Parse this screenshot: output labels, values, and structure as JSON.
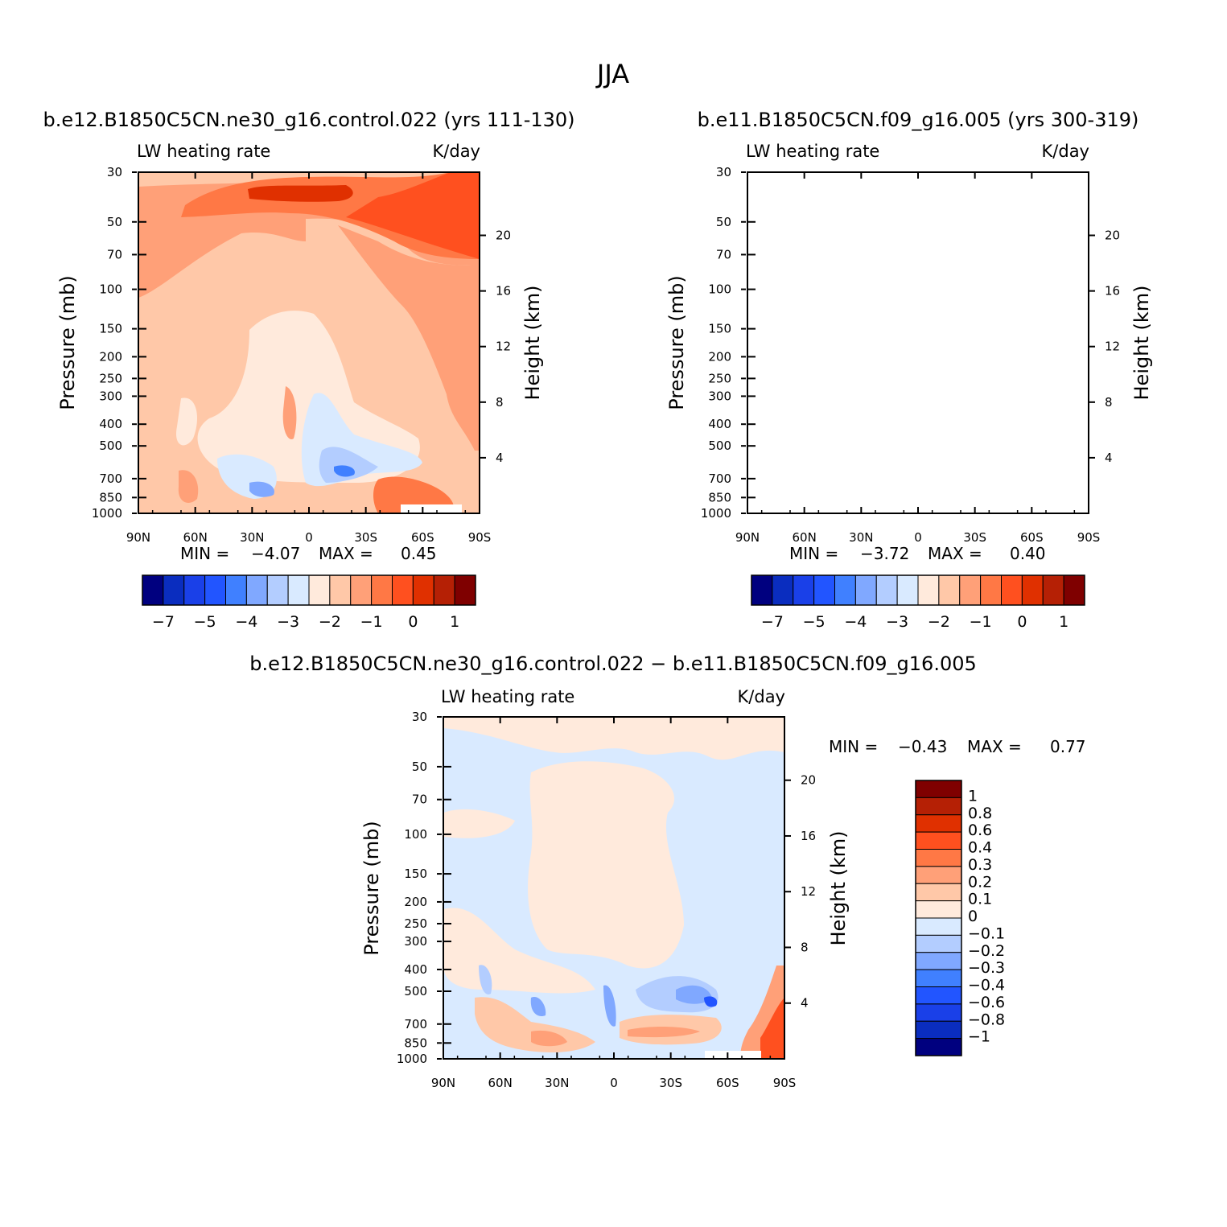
{
  "figure": {
    "title": "JJA"
  },
  "chart_data": [
    {
      "type": "contour",
      "title": "b.e12.B1850C5CN.ne30_g16.control.022 (yrs 111-130)",
      "left_label": "LW heating rate",
      "right_label": "K/day",
      "ylabel": "Pressure (mb)",
      "y2label": "Height (km)",
      "x_ticks": [
        "90N",
        "60N",
        "30N",
        "0",
        "30S",
        "60S",
        "90S"
      ],
      "y_ticks": [
        "30",
        "50",
        "70",
        "100",
        "150",
        "200",
        "250",
        "300",
        "400",
        "500",
        "700",
        "850",
        "1000"
      ],
      "y2_ticks": [
        "20",
        "16",
        "12",
        "8",
        "4"
      ],
      "min_label": "MIN =",
      "min_value": "-4.07",
      "max_label": "MAX =",
      "max_value": "0.45",
      "colorbar_labels": [
        "-7",
        "-5",
        "-4",
        "-3",
        "-2",
        "-1",
        "0",
        "1"
      ],
      "colors": [
        "#00007f",
        "#0a2dbf",
        "#1a40e8",
        "#2255ff",
        "#4080ff",
        "#80a8ff",
        "#b3cdff",
        "#d9eaff",
        "#ffeadc",
        "#ffc8a8",
        "#ffa078",
        "#ff7845",
        "#ff501f",
        "#e03000",
        "#b52005",
        "#7f0000"
      ]
    },
    {
      "type": "contour",
      "title": "b.e11.B1850C5CN.f09_g16.005 (yrs 300-319)",
      "left_label": "LW heating rate",
      "right_label": "K/day",
      "ylabel": "Pressure (mb)",
      "y2label": "Height (km)",
      "x_ticks": [
        "90N",
        "60N",
        "30N",
        "0",
        "30S",
        "60S",
        "90S"
      ],
      "y_ticks": [
        "30",
        "50",
        "70",
        "100",
        "150",
        "200",
        "250",
        "300",
        "400",
        "500",
        "700",
        "850",
        "1000"
      ],
      "y2_ticks": [
        "20",
        "16",
        "12",
        "8",
        "4"
      ],
      "min_label": "MIN =",
      "min_value": "-3.72",
      "max_label": "MAX =",
      "max_value": "0.40",
      "colorbar_labels": [
        "-7",
        "-5",
        "-4",
        "-3",
        "-2",
        "-1",
        "0",
        "1"
      ],
      "colors": [
        "#00007f",
        "#0a2dbf",
        "#1a40e8",
        "#2255ff",
        "#4080ff",
        "#80a8ff",
        "#b3cdff",
        "#d9eaff",
        "#ffeadc",
        "#ffc8a8",
        "#ffa078",
        "#ff7845",
        "#ff501f",
        "#e03000",
        "#b52005",
        "#7f0000"
      ]
    },
    {
      "type": "contour",
      "title": "b.e12.B1850C5CN.ne30_g16.control.022 - b.e11.B1850C5CN.f09_g16.005",
      "left_label": "LW heating rate",
      "right_label": "K/day",
      "ylabel": "Pressure (mb)",
      "y2label": "Height (km)",
      "x_ticks": [
        "90N",
        "60N",
        "30N",
        "0",
        "30S",
        "60S",
        "90S"
      ],
      "y_ticks": [
        "30",
        "50",
        "70",
        "100",
        "150",
        "200",
        "250",
        "300",
        "400",
        "500",
        "700",
        "850",
        "1000"
      ],
      "y2_ticks": [
        "20",
        "16",
        "12",
        "8",
        "4"
      ],
      "min_label": "MIN =",
      "min_value": "-0.43",
      "max_label": "MAX =",
      "max_value": "0.77",
      "colorbar_labels": [
        "1",
        "0.8",
        "0.6",
        "0.4",
        "0.3",
        "0.2",
        "0.1",
        "0",
        "-0.1",
        "-0.2",
        "-0.3",
        "-0.4",
        "-0.6",
        "-0.8",
        "-1"
      ],
      "colors": [
        "#7f0000",
        "#b52005",
        "#e03000",
        "#ff501f",
        "#ff7845",
        "#ffa078",
        "#ffc8a8",
        "#ffeadc",
        "#d9eaff",
        "#b3cdff",
        "#80a8ff",
        "#4080ff",
        "#2255ff",
        "#1a40e8",
        "#0a2dbf",
        "#00007f"
      ]
    }
  ]
}
